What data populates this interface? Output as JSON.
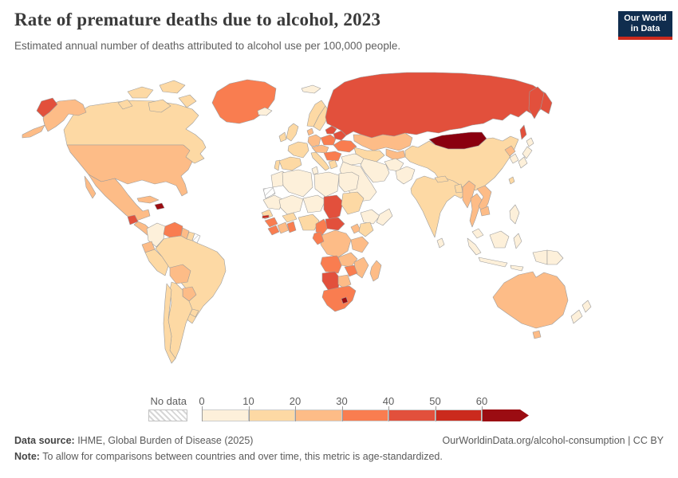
{
  "header": {
    "logo": {
      "line1": "Our World",
      "line2": "in Data",
      "bg_color": "#102d4e",
      "accent_color": "#cc2a1d"
    }
  },
  "chart_data": {
    "type": "choropleth",
    "title": "Rate of premature deaths due to alcohol, 2023",
    "subtitle": "Estimated annual number of deaths attributed to alcohol use per 100,000 people.",
    "year": "2023",
    "unit": "deaths per 100,000 people",
    "legend": {
      "no_data_label": "No data",
      "tick_labels": [
        "0",
        "10",
        "20",
        "30",
        "40",
        "50",
        "60"
      ],
      "bin_ranges": [
        "0-10",
        "10-20",
        "20-30",
        "30-40",
        "40-50",
        "50-60",
        "60+"
      ],
      "bin_colors": [
        "#fdf0da",
        "#fdd9a4",
        "#fdbc87",
        "#f97d50",
        "#e2503c",
        "#cb2a1d",
        "#9b0c12"
      ],
      "border_color": "#9c9c9c"
    },
    "regions": [
      {
        "name": "greenland",
        "range": "30-40",
        "color": "#f97d50"
      },
      {
        "name": "canada",
        "range": "10-20",
        "color": "#fdd9a4"
      },
      {
        "name": "united-states",
        "range": "20-30",
        "color": "#fdbc87"
      },
      {
        "name": "mexico",
        "range": "20-30",
        "color": "#fdbc87"
      },
      {
        "name": "guatemala",
        "range": "40-50",
        "color": "#e2503c"
      },
      {
        "name": "central-america",
        "range": "20-30",
        "color": "#fdbc87"
      },
      {
        "name": "cuba",
        "range": "20-30",
        "color": "#fdbc87"
      },
      {
        "name": "haiti",
        "range": "60+",
        "color": "#9b0c12"
      },
      {
        "name": "colombia",
        "range": "0-10",
        "color": "#fdf0da"
      },
      {
        "name": "venezuela",
        "range": "30-40",
        "color": "#f97d50"
      },
      {
        "name": "guyana",
        "range": "20-30",
        "color": "#fdbc87"
      },
      {
        "name": "suriname",
        "range": "10-20",
        "color": "#fdd9a4"
      },
      {
        "name": "french-guiana",
        "range": "No data",
        "color": "no-data"
      },
      {
        "name": "brazil",
        "range": "10-20",
        "color": "#fdd9a4"
      },
      {
        "name": "ecuador",
        "range": "20-30",
        "color": "#fdbc87"
      },
      {
        "name": "peru",
        "range": "10-20",
        "color": "#fdd9a4"
      },
      {
        "name": "bolivia",
        "range": "20-30",
        "color": "#fdbc87"
      },
      {
        "name": "paraguay",
        "range": "20-30",
        "color": "#fdbc87"
      },
      {
        "name": "uruguay",
        "range": "10-20",
        "color": "#fdd9a4"
      },
      {
        "name": "argentina",
        "range": "10-20",
        "color": "#fdd9a4"
      },
      {
        "name": "chile",
        "range": "10-20",
        "color": "#fdd9a4"
      },
      {
        "name": "iceland",
        "range": "0-10",
        "color": "#fdf0da"
      },
      {
        "name": "svalbard",
        "range": "0-10",
        "color": "#fdf0da"
      },
      {
        "name": "norway",
        "range": "10-20",
        "color": "#fdd9a4"
      },
      {
        "name": "sweden",
        "range": "10-20",
        "color": "#fdd9a4"
      },
      {
        "name": "finland",
        "range": "20-30",
        "color": "#fdbc87"
      },
      {
        "name": "denmark",
        "range": "20-30",
        "color": "#fdbc87"
      },
      {
        "name": "united-kingdom",
        "range": "10-20",
        "color": "#fdd9a4"
      },
      {
        "name": "ireland",
        "range": "10-20",
        "color": "#fdd9a4"
      },
      {
        "name": "france",
        "range": "10-20",
        "color": "#fdd9a4"
      },
      {
        "name": "germany",
        "range": "20-30",
        "color": "#fdbc87"
      },
      {
        "name": "poland",
        "range": "30-40",
        "color": "#f97d50"
      },
      {
        "name": "baltics",
        "range": "40-50",
        "color": "#e2503c"
      },
      {
        "name": "belarus",
        "range": "40-50",
        "color": "#e2503c"
      },
      {
        "name": "ukraine",
        "range": "30-40",
        "color": "#f97d50"
      },
      {
        "name": "central-europe",
        "range": "20-30",
        "color": "#fdbc87"
      },
      {
        "name": "romania-balkans",
        "range": "30-40",
        "color": "#f97d50"
      },
      {
        "name": "greece",
        "range": "10-20",
        "color": "#fdd9a4"
      },
      {
        "name": "italy",
        "range": "10-20",
        "color": "#fdd9a4"
      },
      {
        "name": "spain",
        "range": "10-20",
        "color": "#fdd9a4"
      },
      {
        "name": "portugal",
        "range": "10-20",
        "color": "#fdd9a4"
      },
      {
        "name": "turkey",
        "range": "0-10",
        "color": "#fdf0da"
      },
      {
        "name": "russia",
        "range": "40-50",
        "color": "#e2503c"
      },
      {
        "name": "kazakhstan",
        "range": "20-30",
        "color": "#fdbc87"
      },
      {
        "name": "uzbekistan-turkmenistan",
        "range": "10-20",
        "color": "#fdd9a4"
      },
      {
        "name": "kyrgyzstan-tajikistan",
        "range": "20-30",
        "color": "#fdbc87"
      },
      {
        "name": "mongolia",
        "range": "60+",
        "color": "#8a000f"
      },
      {
        "name": "china",
        "range": "10-20",
        "color": "#fdd9a4"
      },
      {
        "name": "north-korea",
        "range": "20-30",
        "color": "#fdbc87"
      },
      {
        "name": "south-korea",
        "range": "0-10",
        "color": "#fdf0da"
      },
      {
        "name": "japan",
        "range": "0-10",
        "color": "#fdf0da"
      },
      {
        "name": "middle-east",
        "range": "0-10",
        "color": "#fdf0da"
      },
      {
        "name": "iran",
        "range": "0-10",
        "color": "#fdf0da"
      },
      {
        "name": "afghanistan",
        "range": "0-10",
        "color": "#fdf0da"
      },
      {
        "name": "pakistan",
        "range": "0-10",
        "color": "#fdf0da"
      },
      {
        "name": "india",
        "range": "10-20",
        "color": "#fdd9a4"
      },
      {
        "name": "nepal",
        "range": "10-20",
        "color": "#fdd9a4"
      },
      {
        "name": "bangladesh",
        "range": "10-20",
        "color": "#fdd9a4"
      },
      {
        "name": "sri-lanka",
        "range": "0-10",
        "color": "#fdf0da"
      },
      {
        "name": "myanmar",
        "range": "20-30",
        "color": "#fdbc87"
      },
      {
        "name": "thailand",
        "range": "20-30",
        "color": "#fdbc87"
      },
      {
        "name": "vietnam-laos",
        "range": "20-30",
        "color": "#fdbc87"
      },
      {
        "name": "malaysia",
        "range": "0-10",
        "color": "#fdf0da"
      },
      {
        "name": "indonesia",
        "range": "0-10",
        "color": "#fdf0da"
      },
      {
        "name": "philippines",
        "range": "0-10",
        "color": "#fdf0da"
      },
      {
        "name": "papua-new-guinea",
        "range": "0-10",
        "color": "#fdf0da"
      },
      {
        "name": "morocco",
        "range": "0-10",
        "color": "#fdf0da"
      },
      {
        "name": "western-sahara",
        "range": "No data",
        "color": "no-data"
      },
      {
        "name": "algeria",
        "range": "0-10",
        "color": "#fdf0da"
      },
      {
        "name": "tunisia",
        "range": "0-10",
        "color": "#fdf0da"
      },
      {
        "name": "libya",
        "range": "0-10",
        "color": "#fdf0da"
      },
      {
        "name": "egypt",
        "range": "0-10",
        "color": "#fdf0da"
      },
      {
        "name": "mauritania",
        "range": "0-10",
        "color": "#fdf0da"
      },
      {
        "name": "mali",
        "range": "0-10",
        "color": "#fdf0da"
      },
      {
        "name": "niger",
        "range": "0-10",
        "color": "#fdf0da"
      },
      {
        "name": "chad",
        "range": "40-50",
        "color": "#e2503c"
      },
      {
        "name": "sudan",
        "range": "10-20",
        "color": "#fdd9a4"
      },
      {
        "name": "ethiopia",
        "range": "0-10",
        "color": "#fdf0da"
      },
      {
        "name": "somalia",
        "range": "0-10",
        "color": "#fdf0da"
      },
      {
        "name": "senegal",
        "range": "10-20",
        "color": "#fdd9a4"
      },
      {
        "name": "gambia",
        "range": "50-60",
        "color": "#cb2a1d"
      },
      {
        "name": "guinea",
        "range": "30-40",
        "color": "#f97d50"
      },
      {
        "name": "sierra-leone-liberia",
        "range": "30-40",
        "color": "#f97d50"
      },
      {
        "name": "ivory-coast",
        "range": "20-30",
        "color": "#fdbc87"
      },
      {
        "name": "ghana",
        "range": "30-40",
        "color": "#f97d50"
      },
      {
        "name": "burkina-faso",
        "range": "10-20",
        "color": "#fdd9a4"
      },
      {
        "name": "nigeria",
        "range": "10-20",
        "color": "#fdd9a4"
      },
      {
        "name": "cameroon",
        "range": "30-40",
        "color": "#f97d50"
      },
      {
        "name": "central-african-republic",
        "range": "40-50",
        "color": "#e2503c"
      },
      {
        "name": "uganda",
        "range": "20-30",
        "color": "#fdbc87"
      },
      {
        "name": "kenya",
        "range": "10-20",
        "color": "#fdd9a4"
      },
      {
        "name": "drc",
        "range": "20-30",
        "color": "#fdbc87"
      },
      {
        "name": "gabon-congo",
        "range": "30-40",
        "color": "#f97d50"
      },
      {
        "name": "tanzania",
        "range": "20-30",
        "color": "#fdbc87"
      },
      {
        "name": "angola",
        "range": "30-40",
        "color": "#f97d50"
      },
      {
        "name": "zambia",
        "range": "20-30",
        "color": "#fdbc87"
      },
      {
        "name": "mozambique",
        "range": "20-30",
        "color": "#fdbc87"
      },
      {
        "name": "zimbabwe",
        "range": "30-40",
        "color": "#f97d50"
      },
      {
        "name": "namibia",
        "range": "40-50",
        "color": "#e2503c"
      },
      {
        "name": "botswana",
        "range": "20-30",
        "color": "#fdbc87"
      },
      {
        "name": "south-africa",
        "range": "30-40",
        "color": "#f97d50"
      },
      {
        "name": "lesotho",
        "range": "60+",
        "color": "#9b0c12"
      },
      {
        "name": "madagascar",
        "range": "20-30",
        "color": "#fdbc87"
      },
      {
        "name": "australia",
        "range": "20-30",
        "color": "#fdbc87"
      },
      {
        "name": "new-zealand",
        "range": "0-10",
        "color": "#fdf0da"
      }
    ]
  },
  "footer": {
    "source_label": "Data source:",
    "source_text": " IHME, Global Burden of Disease (2025)",
    "link_text": "OurWorldinData.org/alcohol-consumption | CC BY",
    "note_label": "Note:",
    "note_text": " To allow for comparisons between countries and over time, this metric is age-standardized."
  }
}
